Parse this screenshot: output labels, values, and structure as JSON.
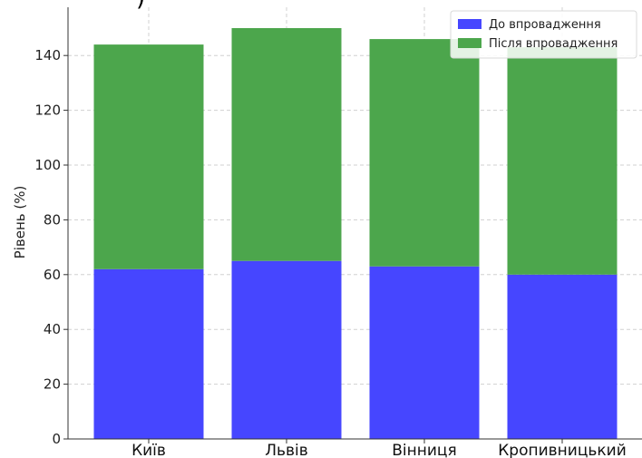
{
  "top_fragment": "  )",
  "chart_data": {
    "type": "bar",
    "stacked": true,
    "categories": [
      "Київ",
      "Львів",
      "Вінниця",
      "Кропивницький"
    ],
    "series": [
      {
        "name": "До впровадження",
        "values": [
          62,
          65,
          63,
          60
        ],
        "color": "#4646ff"
      },
      {
        "name": "Після впровадження",
        "values": [
          82,
          85,
          83,
          83
        ],
        "color": "#4ca64c"
      }
    ],
    "ylabel": "Рівень (%)",
    "xlabel": "",
    "ylim": [
      0,
      155
    ],
    "yticks": [
      0,
      20,
      40,
      60,
      80,
      100,
      120,
      140
    ],
    "grid": true,
    "legend_position": "top-right"
  }
}
